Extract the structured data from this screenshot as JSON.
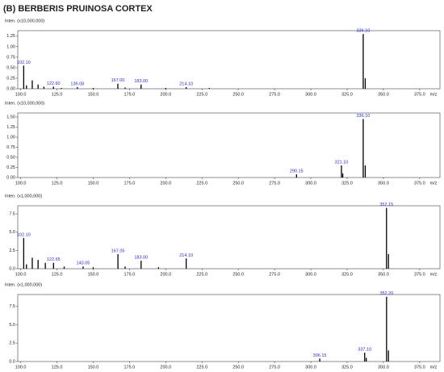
{
  "figure_title": "(B) BERBERIS PRUINOSA CORTEX",
  "chart_data": [
    {
      "type": "spectrum",
      "y_label": "Inten. (x10,000,000)",
      "x_label": "m/z",
      "color": "#000000",
      "label_color": "#2b2bd0",
      "x": [
        102.1,
        104,
        108,
        112,
        116,
        122.6,
        128,
        139.08,
        150,
        167,
        172,
        183,
        200,
        214.1,
        230,
        336.1,
        337.5
      ],
      "values": [
        0.55,
        0.08,
        0.2,
        0.1,
        0.05,
        0.05,
        0.02,
        0.04,
        0.02,
        0.12,
        0.03,
        0.1,
        0.02,
        0.04,
        0.02,
        1.3,
        0.25
      ],
      "peak_labels": [
        "102.10",
        null,
        null,
        null,
        null,
        "122.60",
        null,
        "139.08",
        null,
        "167.00",
        null,
        "183.00",
        null,
        "214.10",
        null,
        "336.10",
        null
      ],
      "xlim": [
        98,
        389
      ],
      "ylim": [
        0,
        1.38
      ],
      "xticks": [
        {
          "value": 100,
          "label": "100.0"
        },
        {
          "value": 125,
          "label": "125.0"
        },
        {
          "value": 150,
          "label": "150.0"
        },
        {
          "value": 175,
          "label": "175.0"
        },
        {
          "value": 200,
          "label": "200.0"
        },
        {
          "value": 225,
          "label": "225.0"
        },
        {
          "value": 250,
          "label": "250.0"
        },
        {
          "value": 275,
          "label": "275.0"
        },
        {
          "value": 300,
          "label": "300.0"
        },
        {
          "value": 325,
          "label": "325.0"
        },
        {
          "value": 350,
          "label": "350.0"
        },
        {
          "value": 375,
          "label": "375.0"
        }
      ],
      "yticks": [
        {
          "value": 0,
          "label": "0.00"
        },
        {
          "value": 0.25,
          "label": "0.25"
        },
        {
          "value": 0.5,
          "label": "0.50"
        },
        {
          "value": 0.75,
          "label": "0.75"
        },
        {
          "value": 1,
          "label": "1.00"
        },
        {
          "value": 1.25,
          "label": "1.25"
        }
      ]
    },
    {
      "type": "spectrum",
      "y_label": "Inten. (x10,000,000)",
      "x_label": "m/z",
      "color": "#000000",
      "label_color": "#2b2bd0",
      "x": [
        290.15,
        321.1,
        322,
        336.1,
        337.5
      ],
      "values": [
        0.08,
        0.3,
        0.1,
        1.45,
        0.3
      ],
      "peak_labels": [
        "290.15",
        "321.10",
        null,
        "336.10",
        null
      ],
      "xlim": [
        98,
        389
      ],
      "ylim": [
        0,
        1.6
      ],
      "xticks": [
        {
          "value": 100,
          "label": "100.0"
        },
        {
          "value": 125,
          "label": "125.0"
        },
        {
          "value": 150,
          "label": "150.0"
        },
        {
          "value": 175,
          "label": "175.0"
        },
        {
          "value": 200,
          "label": "200.0"
        },
        {
          "value": 225,
          "label": "225.0"
        },
        {
          "value": 250,
          "label": "250.0"
        },
        {
          "value": 275,
          "label": "275.0"
        },
        {
          "value": 300,
          "label": "300.0"
        },
        {
          "value": 325,
          "label": "325.0"
        },
        {
          "value": 350,
          "label": "350.0"
        },
        {
          "value": 375,
          "label": "375.0"
        }
      ],
      "yticks": [
        {
          "value": 0,
          "label": "0.00"
        },
        {
          "value": 0.25,
          "label": "0.25"
        },
        {
          "value": 0.5,
          "label": "0.50"
        },
        {
          "value": 0.75,
          "label": "0.75"
        },
        {
          "value": 1,
          "label": "1.00"
        },
        {
          "value": 1.25,
          "label": "1.25"
        },
        {
          "value": 1.5,
          "label": "1.50"
        }
      ]
    },
    {
      "type": "spectrum",
      "y_label": "Inten. (x1,000,000)",
      "x_label": "m/z",
      "color": "#000000",
      "label_color": "#2b2bd0",
      "x": [
        102.1,
        104,
        108,
        112,
        117,
        122.65,
        130,
        143.05,
        150,
        167.05,
        172,
        183,
        195,
        214.1,
        352.15,
        353.5
      ],
      "values": [
        4.2,
        0.6,
        1.5,
        1.2,
        0.8,
        0.8,
        0.3,
        0.3,
        0.2,
        2.0,
        0.3,
        1.1,
        0.2,
        1.4,
        8.3,
        2.0
      ],
      "peak_labels": [
        "102.10",
        null,
        null,
        null,
        null,
        "122.65",
        null,
        "143.05",
        null,
        "167.05",
        null,
        "183.00",
        null,
        "214.10",
        "352.15",
        null
      ],
      "xlim": [
        98,
        389
      ],
      "ylim": [
        0,
        8.6
      ],
      "xticks": [
        {
          "value": 100,
          "label": "100.0"
        },
        {
          "value": 125,
          "label": "125.0"
        },
        {
          "value": 150,
          "label": "150.0"
        },
        {
          "value": 175,
          "label": "175.0"
        },
        {
          "value": 200,
          "label": "200.0"
        },
        {
          "value": 225,
          "label": "225.0"
        },
        {
          "value": 250,
          "label": "250.0"
        },
        {
          "value": 275,
          "label": "275.0"
        },
        {
          "value": 300,
          "label": "300.0"
        },
        {
          "value": 325,
          "label": "325.0"
        },
        {
          "value": 350,
          "label": "350.0"
        },
        {
          "value": 375,
          "label": "375.0"
        }
      ],
      "yticks": [
        {
          "value": 0,
          "label": "0.0"
        },
        {
          "value": 2.5,
          "label": "2.5"
        },
        {
          "value": 5,
          "label": "5.0"
        },
        {
          "value": 7.5,
          "label": "7.5"
        }
      ]
    },
    {
      "type": "spectrum",
      "y_label": "Inten. (x1,000,000)",
      "x_label": "m/z",
      "color": "#000000",
      "label_color": "#2b2bd0",
      "x": [
        306.15,
        337.1,
        338.2,
        352.2,
        353.5
      ],
      "values": [
        0.4,
        1.2,
        0.5,
        8.8,
        1.5
      ],
      "peak_labels": [
        "306.15",
        "337.10",
        null,
        "352.20",
        null
      ],
      "xlim": [
        98,
        389
      ],
      "ylim": [
        0,
        9.1
      ],
      "xticks": [
        {
          "value": 100,
          "label": "100.0"
        },
        {
          "value": 125,
          "label": "125.0"
        },
        {
          "value": 150,
          "label": "150.0"
        },
        {
          "value": 175,
          "label": "175.0"
        },
        {
          "value": 200,
          "label": "200.0"
        },
        {
          "value": 225,
          "label": "225.0"
        },
        {
          "value": 250,
          "label": "250.0"
        },
        {
          "value": 275,
          "label": "275.0"
        },
        {
          "value": 300,
          "label": "300.0"
        },
        {
          "value": 325,
          "label": "325.0"
        },
        {
          "value": 350,
          "label": "350.0"
        },
        {
          "value": 375,
          "label": "375.0"
        }
      ],
      "yticks": [
        {
          "value": 0,
          "label": "0.0"
        },
        {
          "value": 2.5,
          "label": "2.5"
        },
        {
          "value": 5,
          "label": "5.0"
        },
        {
          "value": 7.5,
          "label": "7.5"
        }
      ]
    }
  ]
}
